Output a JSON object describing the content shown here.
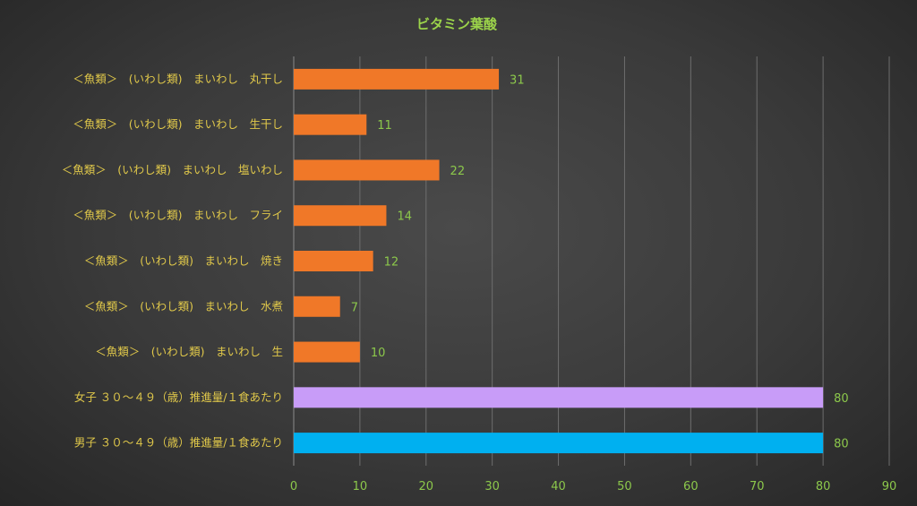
{
  "chart_data": {
    "type": "bar",
    "orientation": "horizontal",
    "title": "ビタミン葉酸",
    "categories": [
      "＜魚類＞　(いわし類)　まいわし　丸干し",
      "＜魚類＞　(いわし類)　まいわし　生干し",
      "＜魚類＞　(いわし類)　まいわし　塩いわし",
      "＜魚類＞　(いわし類)　まいわし　フライ",
      "＜魚類＞　(いわし類)　まいわし　焼き",
      "＜魚類＞　(いわし類)　まいわし　水煮",
      "＜魚類＞　(いわし類)　まいわし　生",
      "女子 ３０～４９（歳）推進量/１食あたり",
      "男子 ３０～４９（歳）推進量/１食あたり"
    ],
    "values": [
      31,
      11,
      22,
      14,
      12,
      7,
      10,
      80,
      80
    ],
    "bar_colors": [
      "#f07828",
      "#f07828",
      "#f07828",
      "#f07828",
      "#f07828",
      "#f07828",
      "#f07828",
      "#c89cf8",
      "#00b0f0"
    ],
    "xlim": [
      0,
      90
    ],
    "xticks": [
      0,
      10,
      20,
      30,
      40,
      50,
      60,
      70,
      80,
      90
    ],
    "xlabel": "",
    "ylabel": "",
    "grid": true,
    "legend": "none"
  }
}
